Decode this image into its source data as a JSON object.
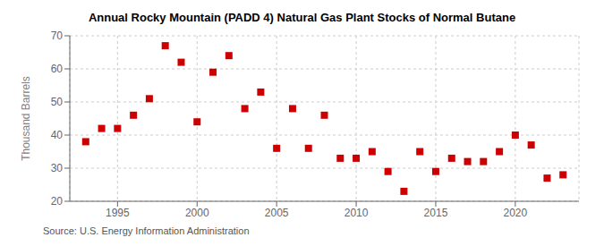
{
  "chart_data": {
    "type": "scatter",
    "title": "Annual Rocky Mountain (PADD 4) Natural Gas Plant Stocks of Normal Butane",
    "ylabel": "Thousand Barrels",
    "annotation": "Source: U.S. Energy Information Administration",
    "x": [
      1993,
      1994,
      1995,
      1996,
      1997,
      1998,
      1999,
      2000,
      2001,
      2002,
      2003,
      2004,
      2005,
      2006,
      2007,
      2008,
      2009,
      2010,
      2011,
      2012,
      2013,
      2014,
      2015,
      2016,
      2017,
      2018,
      2019,
      2020,
      2021,
      2022,
      2023
    ],
    "values": [
      38,
      42,
      42,
      46,
      51,
      67,
      62,
      44,
      59,
      64,
      48,
      53,
      36,
      48,
      36,
      46,
      33,
      33,
      35,
      29,
      23,
      35,
      29,
      33,
      32,
      32,
      35,
      40,
      37,
      27,
      28
    ],
    "xlim": [
      1992,
      2024
    ],
    "xticks": [
      1995,
      2000,
      2005,
      2010,
      2015,
      2020
    ],
    "ylim": [
      20,
      70
    ],
    "yticks": [
      20,
      30,
      40,
      50,
      60,
      70
    ],
    "color": "#cc0000",
    "marker": "square",
    "grid": true
  }
}
